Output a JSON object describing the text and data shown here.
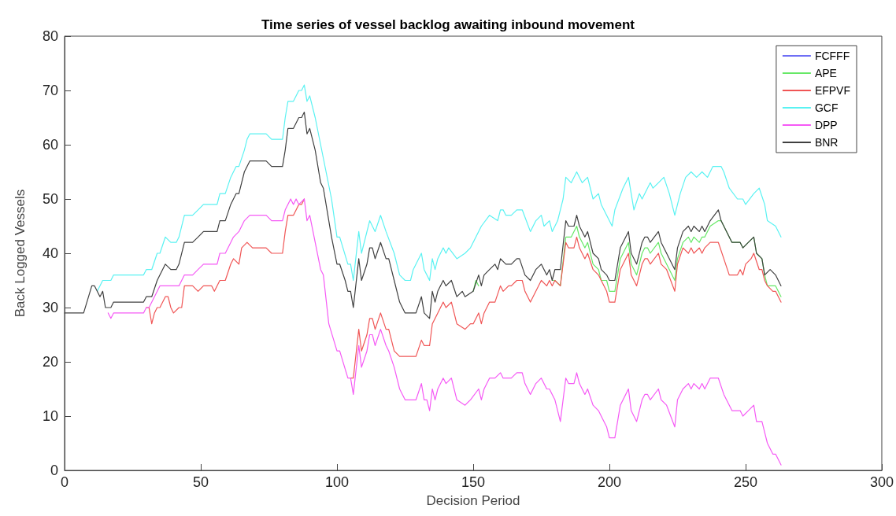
{
  "chart_data": {
    "type": "line",
    "title": "Time series of vessel backlog awaiting inbound movement",
    "xlabel": "Decision Period",
    "ylabel": "Back Logged Vessels",
    "xlim": [
      0,
      300
    ],
    "xticks": [
      0,
      50,
      100,
      150,
      200,
      250,
      300
    ],
    "ylim": [
      0,
      80
    ],
    "yticks": [
      0,
      10,
      20,
      30,
      40,
      50,
      60,
      70,
      80
    ],
    "grid": false,
    "legend": "top right",
    "marker": "none",
    "line_style": "solid",
    "series": [
      {
        "name": "FCFFF",
        "color": "#6f6ff5",
        "values": [
          null
        ]
      },
      {
        "name": "APE",
        "color": "#66e866",
        "x": [
          150,
          151,
          152,
          153,
          179,
          180,
          182,
          184,
          186,
          188,
          189,
          191,
          192,
          194,
          196,
          197,
          199,
          200,
          202,
          204,
          207,
          208,
          210,
          212,
          213,
          214,
          215,
          218,
          219,
          221,
          224,
          225,
          227,
          229,
          230,
          231,
          233,
          234,
          235,
          237,
          240,
          241,
          245,
          248,
          249,
          251,
          253,
          254,
          256,
          257,
          258,
          261,
          263
        ],
        "values": [
          33,
          35,
          34,
          null,
          35,
          35,
          34,
          43,
          43,
          45,
          43,
          41,
          42,
          38,
          37,
          35,
          35,
          33,
          33,
          39,
          42,
          38,
          36,
          40,
          41,
          41,
          40,
          42,
          40,
          38,
          35,
          39,
          42,
          43,
          42,
          43,
          42,
          43,
          43,
          45,
          46,
          46,
          42,
          42,
          41,
          42,
          43,
          40,
          39,
          36,
          34,
          34,
          32
        ]
      },
      {
        "name": "EFPVF",
        "color": "#f05555",
        "x": [
          30,
          31,
          32,
          33,
          34,
          35,
          37,
          38,
          39,
          40,
          42,
          43,
          44,
          47,
          49,
          51,
          54,
          55,
          57,
          59,
          61,
          62,
          64,
          65,
          67,
          69,
          74,
          76,
          80,
          81,
          82,
          84,
          86,
          87,
          88,
          89,
          105,
          106,
          108,
          109,
          111,
          112,
          113,
          114,
          116,
          118,
          119,
          121,
          123,
          129,
          131,
          132,
          134,
          135,
          137,
          139,
          140,
          142,
          144,
          147,
          149,
          150,
          152,
          153,
          154,
          156,
          158,
          160,
          161,
          163,
          164,
          166,
          168,
          169,
          171,
          173,
          175,
          177,
          178,
          179,
          180,
          182,
          184,
          185,
          187,
          188,
          189,
          191,
          192,
          194,
          196,
          197,
          199,
          200,
          202,
          204,
          207,
          208,
          210,
          212,
          213,
          214,
          215,
          218,
          219,
          221,
          224,
          225,
          227,
          229,
          230,
          231,
          233,
          234,
          235,
          237,
          240,
          242,
          244,
          247,
          248,
          249,
          250,
          252,
          253,
          255,
          256,
          257,
          258,
          260,
          261,
          263
        ],
        "values": [
          30,
          30,
          27,
          29,
          30,
          30,
          32,
          32,
          30,
          29,
          30,
          30,
          34,
          34,
          33,
          34,
          34,
          33,
          35,
          35,
          38,
          39,
          38,
          41,
          42,
          41,
          41,
          40,
          40,
          44,
          47,
          47,
          49,
          49,
          50,
          null,
          17,
          17,
          26,
          22,
          25,
          28,
          28,
          26,
          29,
          26,
          26,
          22,
          21,
          21,
          24,
          23,
          23,
          27,
          29,
          31,
          30,
          31,
          27,
          26,
          27,
          27,
          29,
          27,
          29,
          31,
          31,
          34,
          33,
          34,
          34,
          35,
          35,
          33,
          31,
          33,
          35,
          34,
          35,
          34,
          35,
          34,
          42,
          41,
          41,
          43,
          41,
          39,
          40,
          37,
          36,
          35,
          33,
          31,
          31,
          37,
          40,
          36,
          34,
          38,
          39,
          39,
          38,
          40,
          38,
          37,
          33,
          38,
          41,
          40,
          41,
          40,
          41,
          40,
          41,
          42,
          42,
          39,
          36,
          36,
          37,
          36,
          38,
          39,
          40,
          37,
          37,
          35,
          34,
          33,
          33,
          31
        ]
      },
      {
        "name": "GCF",
        "color": "#5af2f2",
        "x": [
          12,
          14,
          17,
          18,
          29,
          30,
          32,
          34,
          35,
          37,
          39,
          41,
          42,
          44,
          47,
          49,
          51,
          56,
          57,
          59,
          61,
          63,
          64,
          66,
          67,
          68,
          74,
          76,
          80,
          81,
          82,
          84,
          86,
          87,
          88,
          89,
          90,
          92,
          94,
          96,
          98,
          100,
          101,
          104,
          105,
          106,
          108,
          109,
          112,
          114,
          116,
          118,
          121,
          123,
          125,
          127,
          128,
          131,
          132,
          134,
          135,
          136,
          137,
          139,
          140,
          141,
          144,
          147,
          149,
          151,
          153,
          156,
          159,
          160,
          161,
          162,
          164,
          166,
          168,
          171,
          173,
          175,
          176,
          178,
          179,
          181,
          183,
          184,
          186,
          188,
          190,
          192,
          194,
          196,
          197,
          199,
          201,
          202,
          205,
          207,
          209,
          211,
          212,
          215,
          216,
          218,
          220,
          222,
          224,
          226,
          228,
          230,
          232,
          234,
          236,
          238,
          241,
          242,
          244,
          247,
          249,
          250,
          253,
          255,
          257,
          258,
          261,
          263
        ],
        "values": [
          33,
          35,
          35,
          36,
          36,
          37,
          37,
          40,
          40,
          43,
          42,
          42,
          43,
          47,
          47,
          48,
          49,
          49,
          51,
          51,
          54,
          56,
          56,
          59,
          61,
          62,
          62,
          61,
          61,
          65,
          68,
          68,
          70,
          70,
          71,
          68,
          69,
          65,
          60,
          55,
          50,
          43,
          43,
          38,
          38,
          35,
          44,
          40,
          46,
          44,
          47,
          44,
          40,
          36,
          35,
          35,
          37,
          40,
          37,
          35,
          39,
          37,
          39,
          41,
          40,
          41,
          39,
          40,
          41,
          43,
          45,
          47,
          46,
          48,
          48,
          47,
          47,
          48,
          48,
          44,
          46,
          47,
          45,
          46,
          44,
          46,
          50,
          54,
          53,
          55,
          53,
          54,
          50,
          51,
          49,
          47,
          45,
          48,
          52,
          54,
          48,
          51,
          50,
          53,
          52,
          53,
          54,
          51,
          47,
          51,
          54,
          55,
          54,
          55,
          54,
          56,
          56,
          55,
          52,
          50,
          50,
          49,
          51,
          52,
          49,
          46,
          45,
          43
        ]
      },
      {
        "name": "DPP",
        "color": "#f55af5",
        "x": [
          16,
          17,
          18,
          29,
          30,
          31,
          33,
          35,
          42,
          44,
          47,
          49,
          51,
          56,
          57,
          59,
          61,
          62,
          64,
          66,
          68,
          74,
          76,
          80,
          81,
          83,
          84,
          85,
          86,
          88,
          89,
          90,
          92,
          94,
          95,
          97,
          100,
          101,
          104,
          105,
          106,
          108,
          109,
          111,
          112,
          113,
          114,
          116,
          118,
          119,
          121,
          123,
          125,
          129,
          131,
          132,
          133,
          134,
          135,
          136,
          137,
          139,
          140,
          142,
          144,
          147,
          149,
          152,
          153,
          154,
          156,
          158,
          160,
          161,
          164,
          166,
          168,
          169,
          171,
          173,
          175,
          177,
          178,
          179,
          180,
          182,
          184,
          185,
          187,
          188,
          189,
          191,
          192,
          194,
          196,
          197,
          199,
          200,
          202,
          204,
          207,
          208,
          210,
          212,
          213,
          214,
          215,
          218,
          219,
          221,
          224,
          225,
          227,
          229,
          230,
          231,
          233,
          234,
          235,
          237,
          240,
          242,
          245,
          248,
          249,
          251,
          253,
          254,
          256,
          258,
          260,
          261,
          263
        ],
        "values": [
          29,
          28,
          29,
          29,
          30,
          30,
          32,
          34,
          34,
          36,
          36,
          37,
          38,
          38,
          40,
          40,
          42,
          43,
          44,
          46,
          47,
          47,
          46,
          46,
          48,
          50,
          49,
          50,
          49,
          50,
          46,
          47,
          42,
          37,
          36,
          27,
          22,
          22,
          17,
          17,
          14,
          23,
          19,
          22,
          25,
          25,
          23,
          26,
          23,
          22,
          19,
          15,
          13,
          13,
          16,
          13,
          13,
          11,
          15,
          13,
          15,
          17,
          16,
          17,
          13,
          12,
          13,
          15,
          13,
          15,
          17,
          17,
          18,
          17,
          17,
          18,
          18,
          16,
          14,
          16,
          17,
          15,
          15,
          14,
          13,
          9,
          17,
          16,
          16,
          18,
          16,
          14,
          15,
          12,
          11,
          10,
          8,
          6,
          6,
          12,
          15,
          11,
          9,
          13,
          14,
          14,
          13,
          15,
          13,
          12,
          8,
          13,
          15,
          16,
          15,
          16,
          15,
          16,
          15,
          17,
          17,
          14,
          11,
          11,
          10,
          11,
          12,
          9,
          9,
          5,
          3,
          3,
          1
        ]
      },
      {
        "name": "BNR",
        "color": "#404040",
        "x": [
          0,
          7,
          10,
          11,
          13,
          14,
          15,
          17,
          18,
          29,
          30,
          32,
          34,
          35,
          37,
          39,
          41,
          42,
          44,
          47,
          49,
          51,
          56,
          57,
          59,
          61,
          63,
          64,
          66,
          68,
          74,
          76,
          80,
          81,
          82,
          84,
          86,
          87,
          88,
          89,
          90,
          92,
          94,
          95,
          98,
          100,
          101,
          103,
          104,
          105,
          106,
          108,
          109,
          111,
          112,
          113,
          114,
          116,
          118,
          119,
          121,
          123,
          125,
          129,
          131,
          132,
          134,
          135,
          136,
          137,
          139,
          140,
          142,
          144,
          146,
          147,
          150,
          152,
          153,
          154,
          156,
          158,
          159,
          160,
          162,
          164,
          166,
          167,
          169,
          171,
          173,
          175,
          177,
          178,
          179,
          180,
          182,
          184,
          185,
          187,
          188,
          189,
          191,
          192,
          194,
          196,
          197,
          199,
          200,
          202,
          204,
          207,
          208,
          210,
          212,
          213,
          214,
          215,
          218,
          219,
          221,
          224,
          225,
          227,
          229,
          230,
          231,
          233,
          234,
          235,
          237,
          240,
          241,
          245,
          248,
          249,
          251,
          253,
          254,
          256,
          257,
          259,
          261,
          263
        ],
        "values": [
          29,
          29,
          34,
          34,
          32,
          33,
          30,
          30,
          31,
          31,
          32,
          32,
          35,
          36,
          38,
          37,
          37,
          38,
          42,
          42,
          43,
          44,
          44,
          46,
          46,
          49,
          51,
          51,
          55,
          57,
          57,
          56,
          56,
          59,
          63,
          63,
          65,
          65,
          66,
          62,
          63,
          59,
          53,
          52,
          43,
          38,
          38,
          35,
          33,
          33,
          30,
          39,
          35,
          38,
          41,
          41,
          39,
          42,
          39,
          39,
          35,
          31,
          29,
          29,
          32,
          29,
          28,
          33,
          31,
          33,
          35,
          34,
          35,
          32,
          33,
          32,
          33,
          36,
          34,
          36,
          37,
          38,
          37,
          39,
          38,
          38,
          39,
          39,
          36,
          35,
          37,
          38,
          36,
          37,
          35,
          37,
          37,
          46,
          45,
          45,
          47,
          45,
          43,
          44,
          40,
          39,
          37,
          36,
          35,
          35,
          41,
          44,
          40,
          38,
          42,
          43,
          43,
          42,
          44,
          42,
          40,
          37,
          41,
          44,
          45,
          44,
          45,
          44,
          45,
          44,
          46,
          48,
          46,
          42,
          42,
          41,
          42,
          43,
          40,
          39,
          36,
          37,
          36,
          34
        ]
      }
    ]
  }
}
